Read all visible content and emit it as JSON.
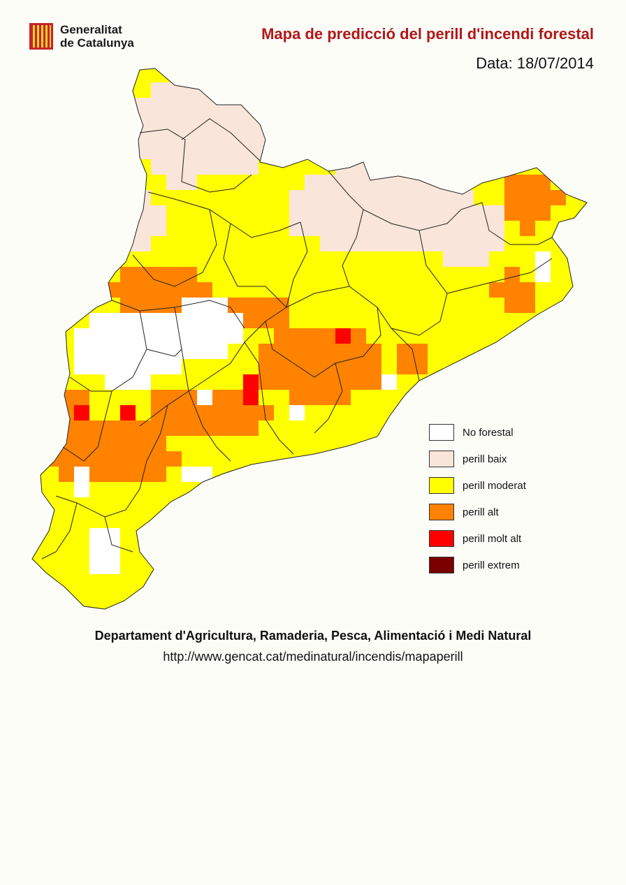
{
  "header": {
    "org_line1": "Generalitat",
    "org_line2": "de Catalunya",
    "title": "Mapa de predicció del perill d'incendi forestal",
    "date": "Data: 18/07/2014"
  },
  "legend": [
    {
      "label": "No forestal",
      "color": "#ffffff"
    },
    {
      "label": "perill baix",
      "color": "#f9e5d9"
    },
    {
      "label": "perill moderat",
      "color": "#ffff00"
    },
    {
      "label": "perill alt",
      "color": "#ff8200"
    },
    {
      "label": "perill molt alt",
      "color": "#ff0000"
    },
    {
      "label": "perill extrem",
      "color": "#7a0000"
    }
  ],
  "footer": {
    "department": "Departament d'Agricultura, Ramaderia, Pesca, Alimentació i Medi Natural",
    "url": "http://www.gencat.cat/medinatural/incendis/mapaperill"
  },
  "map_data": {
    "region": "Catalunya",
    "danger_levels_grid_legend_index": true
  }
}
